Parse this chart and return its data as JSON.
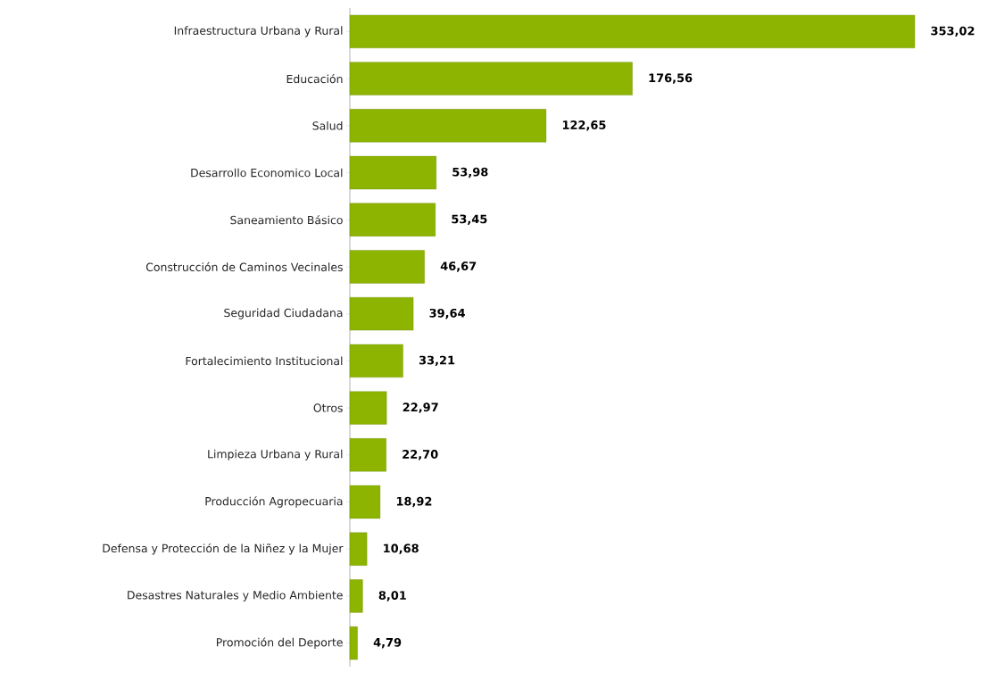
{
  "chart_data": {
    "type": "bar",
    "orientation": "horizontal",
    "color": "#8cb400",
    "categories": [
      "Infraestructura Urbana y Rural",
      "Educación",
      "Salud",
      "Desarrollo Economico Local",
      "Saneamiento Básico",
      "Construcción de Caminos Vecinales",
      "Seguridad Ciudadana",
      "Fortalecimiento Institucional",
      "Otros",
      "Limpieza Urbana y Rural",
      "Producción Agropecuaria",
      "Defensa y Protección de la Niñez y la Mujer",
      "Desastres Naturales y Medio Ambiente",
      "Promoción del Deporte"
    ],
    "values": [
      353.02,
      176.56,
      122.65,
      53.98,
      53.45,
      46.67,
      39.64,
      33.21,
      22.97,
      22.7,
      18.92,
      10.68,
      8.01,
      4.79
    ],
    "value_labels": [
      "353,02",
      "176,56",
      "122,65",
      "53,98",
      "53,45",
      "46,67",
      "39,64",
      "33,21",
      "22,97",
      "22,70",
      "18,92",
      "10,68",
      "8,01",
      "4,79"
    ]
  }
}
